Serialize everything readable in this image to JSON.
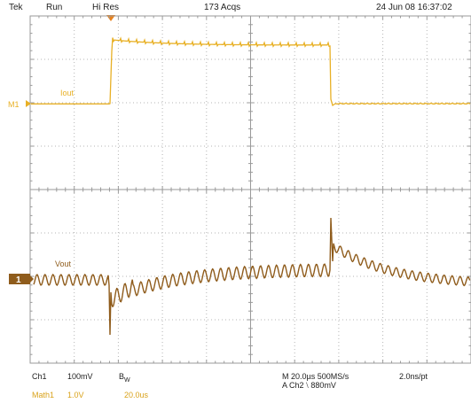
{
  "header": {
    "brand": "Tek",
    "run_state": "Run",
    "acq_mode": "Hi Res",
    "acq_count": "173 Acqs",
    "timestamp": "24 Jun 08 16:37:02"
  },
  "traces": {
    "upper": {
      "label": "Iout",
      "marker": "M1",
      "color": "#e8b025"
    },
    "lower": {
      "label": "Vout",
      "marker": "1",
      "color": "#8f5c1c"
    }
  },
  "footer": {
    "ch1_name": "Ch1",
    "ch1_scale": "100mV",
    "ch1_bw": "B",
    "ch1_bw_sub": "W",
    "math_name": "Math1",
    "math_scale": "1.0V",
    "math_time": "20.0us",
    "horizontal": "M 20.0µs 500MS/s",
    "record": "2.0ns/pt",
    "trigger_prefix": "A  Ch2",
    "trigger_slope": "⧵",
    "trigger_level": "880mV"
  },
  "colors": {
    "grid": "#9a9a9a",
    "grid_dots": "#b5b5b5",
    "trigger_marker": "#e8821e"
  }
}
